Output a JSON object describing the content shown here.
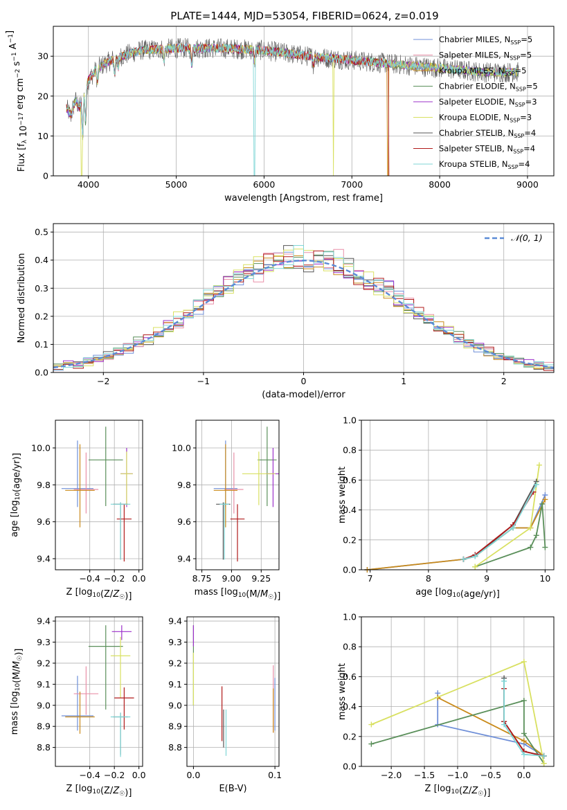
{
  "figure": {
    "title": "PLATE=1444, MJD=53054, FIBERID=0624, z=0.019"
  },
  "models": [
    {
      "name": "Chabrier MILES",
      "nssp": "5",
      "color": "#6f8fd8"
    },
    {
      "name": "Salpeter MILES",
      "nssp": "5",
      "color": "#e98fa8"
    },
    {
      "name": "Kroupa MILES",
      "nssp": "5",
      "color": "#c98a1a"
    },
    {
      "name": "Chabrier ELODIE",
      "nssp": "5",
      "color": "#5a8f5a"
    },
    {
      "name": "Salpeter ELODIE",
      "nssp": "3",
      "color": "#9b2fc9"
    },
    {
      "name": "Kroupa ELODIE",
      "nssp": "3",
      "color": "#d8e060"
    },
    {
      "name": "Chabrier STELIB",
      "nssp": "4",
      "color": "#555555"
    },
    {
      "name": "Salpeter STELIB",
      "nssp": "4",
      "color": "#b01a1a"
    },
    {
      "name": "Kroupa STELIB",
      "nssp": "4",
      "color": "#7fd6d6"
    }
  ],
  "chart_data": [
    {
      "id": "spectrum",
      "type": "line",
      "xlabel": "wavelength [Angstrom, rest frame]",
      "ylabel": "Flux [f_λ 10^-17 erg cm^-2 s^-1 A^-1]",
      "xlim": [
        3600,
        9300
      ],
      "ylim": [
        0,
        37.5
      ],
      "xticks": [
        4000,
        5000,
        6000,
        7000,
        8000,
        9000
      ],
      "yticks": [
        0,
        10,
        20,
        30
      ],
      "continuum": [
        [
          3750,
          17
        ],
        [
          3800,
          15
        ],
        [
          3850,
          19
        ],
        [
          3900,
          17
        ],
        [
          3950,
          21
        ],
        [
          4000,
          24
        ],
        [
          4100,
          27
        ],
        [
          4300,
          29.5
        ],
        [
          4600,
          31.5
        ],
        [
          5000,
          32
        ],
        [
          5500,
          32
        ],
        [
          6000,
          31.5
        ],
        [
          6500,
          30
        ],
        [
          7000,
          29
        ],
        [
          7500,
          28
        ],
        [
          8000,
          27
        ],
        [
          8500,
          26
        ],
        [
          8900,
          26
        ]
      ],
      "dips": [
        [
          5890,
          0
        ],
        [
          6790,
          0
        ],
        [
          7420,
          0
        ],
        [
          3920,
          0
        ]
      ],
      "legend": "top-right"
    },
    {
      "id": "residuals",
      "type": "histogram",
      "xlabel": "(data-model)/error",
      "ylabel": "Normed distribution",
      "xlim": [
        -2.5,
        2.5
      ],
      "ylim": [
        0,
        0.53
      ],
      "xticks": [
        -2,
        -1,
        0,
        1,
        2
      ],
      "yticks": [
        0.0,
        0.1,
        0.2,
        0.3,
        0.4,
        0.5
      ],
      "bin_width": 0.1,
      "reference": {
        "name": "𝒩(0, 1)",
        "mean": 0,
        "sigma": 1,
        "color": "#5b8bd6"
      },
      "legend": "top-right"
    },
    {
      "id": "age-vs-Z",
      "type": "errorbar",
      "xlabel": "Z [log10(Z/Z☉)]",
      "ylabel": "age [log10(age/yr)]",
      "xlim": [
        -0.68,
        0.03
      ],
      "ylim": [
        9.34,
        10.15
      ],
      "xticks": [
        -0.4,
        -0.2,
        0.0
      ],
      "yticks": [
        9.4,
        9.6,
        9.8,
        10.0
      ],
      "points": [
        {
          "x": -0.5,
          "xerr": 0.13,
          "y": 9.78,
          "yerr": 0.1,
          "yerr_up": 0.26,
          "m": 0
        },
        {
          "x": -0.43,
          "xerr": 0.1,
          "y": 9.775,
          "yerr": 0.13,
          "yerr_up": 0.2,
          "m": 1
        },
        {
          "x": -0.48,
          "xerr": 0.12,
          "y": 9.77,
          "yerr": 0.2,
          "yerr_up": 0.25,
          "m": 2
        },
        {
          "x": -0.27,
          "xerr": 0.14,
          "y": 9.935,
          "yerr": 0.25,
          "yerr_up": 0.18,
          "m": 3
        },
        {
          "x": -0.1,
          "xerr": 0.05,
          "y": 9.86,
          "yerr": 0.18,
          "yerr_up": 0.14,
          "m": 4
        },
        {
          "x": -0.1,
          "xerr": 0.05,
          "y": 9.86,
          "yerr": 0.17,
          "yerr_up": 0.12,
          "m": 5
        },
        {
          "x": -0.15,
          "xerr": 0.06,
          "y": 9.695,
          "yerr": 0.3,
          "yerr_up": 0.01,
          "m": 6
        },
        {
          "x": -0.12,
          "xerr": 0.06,
          "y": 9.615,
          "yerr": 0.23,
          "yerr_up": 0.08,
          "m": 7
        },
        {
          "x": -0.15,
          "xerr": 0.08,
          "y": 9.695,
          "yerr": 0.3,
          "yerr_up": 0.01,
          "m": 8
        }
      ]
    },
    {
      "id": "age-vs-mass",
      "type": "errorbar",
      "xlabel": "mass [log10(M/M☉)]",
      "ylabel": "",
      "xlim": [
        8.7,
        9.4
      ],
      "ylim": [
        9.34,
        10.15
      ],
      "xticks": [
        8.75,
        9.0,
        9.25
      ],
      "yticks": [
        9.4,
        9.6,
        9.8,
        10.0
      ],
      "points": [
        {
          "x": 8.95,
          "xerr": 0.1,
          "y": 9.78,
          "yerr": 0.1,
          "yerr_up": 0.26,
          "m": 0
        },
        {
          "x": 9.02,
          "xerr": 0.08,
          "y": 9.775,
          "yerr": 0.13,
          "yerr_up": 0.2,
          "m": 1
        },
        {
          "x": 8.95,
          "xerr": 0.1,
          "y": 9.77,
          "yerr": 0.2,
          "yerr_up": 0.25,
          "m": 2
        },
        {
          "x": 9.3,
          "xerr": 0.08,
          "y": 9.935,
          "yerr": 0.25,
          "yerr_up": 0.18,
          "m": 3
        },
        {
          "x": 9.35,
          "xerr": 0.06,
          "y": 9.86,
          "yerr": 0.18,
          "yerr_up": 0.14,
          "m": 4
        },
        {
          "x": 9.23,
          "xerr": 0.14,
          "y": 9.86,
          "yerr": 0.17,
          "yerr_up": 0.12,
          "m": 5
        },
        {
          "x": 8.93,
          "xerr": 0.06,
          "y": 9.695,
          "yerr": 0.3,
          "yerr_up": 0.01,
          "m": 6
        },
        {
          "x": 9.05,
          "xerr": 0.06,
          "y": 9.615,
          "yerr": 0.23,
          "yerr_up": 0.08,
          "m": 7
        },
        {
          "x": 8.94,
          "xerr": 0.04,
          "y": 9.695,
          "yerr": 0.3,
          "yerr_up": 0.01,
          "m": 8
        }
      ]
    },
    {
      "id": "mass-vs-Z",
      "type": "errorbar",
      "xlabel": "Z [log10(Z/Z☉)]",
      "ylabel": "mass [log10(M/M☉)]",
      "xlim": [
        -0.68,
        0.03
      ],
      "ylim": [
        8.71,
        9.42
      ],
      "xticks": [
        -0.4,
        -0.2,
        0.0
      ],
      "yticks": [
        8.8,
        8.9,
        9.0,
        9.1,
        9.2,
        9.3,
        9.4
      ],
      "points": [
        {
          "x": -0.5,
          "xerr": 0.13,
          "y": 8.95,
          "yerr": 0.07,
          "yerr_up": 0.19,
          "m": 0
        },
        {
          "x": -0.43,
          "xerr": 0.1,
          "y": 9.055,
          "yerr": 0.1,
          "yerr_up": 0.13,
          "m": 1
        },
        {
          "x": -0.48,
          "xerr": 0.12,
          "y": 8.945,
          "yerr": 0.08,
          "yerr_up": 0.12,
          "m": 2
        },
        {
          "x": -0.27,
          "xerr": 0.14,
          "y": 9.28,
          "yerr": 0.3,
          "yerr_up": 0.1,
          "m": 3
        },
        {
          "x": -0.14,
          "xerr": 0.08,
          "y": 9.35,
          "yerr": 0.04,
          "yerr_up": 0.03,
          "m": 4
        },
        {
          "x": -0.15,
          "xerr": 0.08,
          "y": 9.235,
          "yerr": 0.2,
          "yerr_up": 0.09,
          "m": 5
        },
        {
          "x": -0.15,
          "xerr": 0.06,
          "y": 8.945,
          "yerr": 0.18,
          "yerr_up": 0.02,
          "m": 6
        },
        {
          "x": -0.12,
          "xerr": 0.08,
          "y": 9.035,
          "yerr": 0.15,
          "yerr_up": 0.05,
          "m": 7
        },
        {
          "x": -0.15,
          "xerr": 0.08,
          "y": 8.945,
          "yerr": 0.19,
          "yerr_up": 0.02,
          "m": 8
        }
      ]
    },
    {
      "id": "mass-vs-ebv",
      "type": "errorbar",
      "xlabel": "E(B-V)",
      "ylabel": "",
      "xlim": [
        -0.008,
        0.105
      ],
      "ylim": [
        8.71,
        9.42
      ],
      "xticks": [
        0.0,
        0.1
      ],
      "yticks": [
        8.8,
        8.9,
        9.0,
        9.1,
        9.2,
        9.3,
        9.4
      ],
      "points": [
        {
          "x": 0.1,
          "xerr": 0.0,
          "y": 9.0,
          "yerr": 0.12,
          "yerr_up": 0.13,
          "m": 0
        },
        {
          "x": 0.098,
          "xerr": 0.0,
          "y": 9.05,
          "yerr": 0.18,
          "yerr_up": 0.14,
          "m": 1
        },
        {
          "x": 0.098,
          "xerr": 0.0,
          "y": 9.0,
          "yerr": 0.13,
          "yerr_up": 0.08,
          "m": 2
        },
        {
          "x": 0.0,
          "xerr": 0.0,
          "y": 9.28,
          "yerr": 0.28,
          "yerr_up": 0.1,
          "m": 3
        },
        {
          "x": 0.0,
          "xerr": 0.0,
          "y": 9.34,
          "yerr": 0.06,
          "yerr_up": 0.04,
          "m": 4
        },
        {
          "x": 0.0,
          "xerr": 0.0,
          "y": 9.15,
          "yerr": 0.15,
          "yerr_up": 0.1,
          "m": 5
        },
        {
          "x": 0.037,
          "xerr": 0.0,
          "y": 8.95,
          "yerr": 0.15,
          "yerr_up": 0.03,
          "m": 6
        },
        {
          "x": 0.035,
          "xerr": 0.0,
          "y": 8.95,
          "yerr": 0.12,
          "yerr_up": 0.14,
          "m": 7
        },
        {
          "x": 0.04,
          "xerr": 0.0,
          "y": 8.88,
          "yerr": 0.12,
          "yerr_up": 0.1,
          "m": 8
        }
      ]
    },
    {
      "id": "weight-vs-age",
      "type": "line",
      "xlabel": "age [log10(age/yr)]",
      "ylabel": "mass weight",
      "xlim": [
        6.85,
        10.15
      ],
      "ylim": [
        0,
        1.0
      ],
      "xticks": [
        7,
        8,
        9,
        10
      ],
      "yticks": [
        0.0,
        0.2,
        0.4,
        0.6,
        0.8,
        1.0
      ],
      "series": [
        {
          "m": 0,
          "x": [
            6.95,
            8.6,
            8.8,
            9.45,
            9.75,
            10.0
          ],
          "y": [
            0.0,
            0.07,
            0.09,
            0.28,
            0.28,
            0.5
          ]
        },
        {
          "m": 2,
          "x": [
            6.95,
            8.6,
            8.8,
            9.45,
            9.75,
            10.0
          ],
          "y": [
            0.0,
            0.07,
            0.09,
            0.28,
            0.28,
            0.47
          ]
        },
        {
          "m": 3,
          "x": [
            8.8,
            9.75,
            9.85,
            9.95,
            10.0
          ],
          "y": [
            0.02,
            0.15,
            0.23,
            0.44,
            0.15
          ]
        },
        {
          "m": 5,
          "x": [
            8.8,
            9.75,
            9.9
          ],
          "y": [
            0.02,
            0.28,
            0.7
          ]
        },
        {
          "m": 6,
          "x": [
            8.6,
            8.8,
            9.45,
            9.85
          ],
          "y": [
            0.07,
            0.09,
            0.3,
            0.59
          ]
        },
        {
          "m": 7,
          "x": [
            8.6,
            8.8,
            9.45,
            9.8
          ],
          "y": [
            0.07,
            0.1,
            0.3,
            0.52
          ]
        },
        {
          "m": 8,
          "x": [
            8.6,
            8.8,
            9.45,
            9.85
          ],
          "y": [
            0.07,
            0.09,
            0.28,
            0.57
          ]
        }
      ]
    },
    {
      "id": "weight-vs-Z",
      "type": "line",
      "xlabel": "Z [log10(Z/Z☉)]",
      "ylabel": "mass weight",
      "xlim": [
        -2.45,
        0.45
      ],
      "ylim": [
        0,
        1.0
      ],
      "xticks": [
        -2.0,
        -1.5,
        -1.0,
        -0.5,
        0.0
      ],
      "yticks": [
        0.0,
        0.2,
        0.4,
        0.6,
        0.8,
        1.0
      ],
      "series": [
        {
          "m": 0,
          "x": [
            -1.3,
            -1.3,
            0.0,
            0.3
          ],
          "y": [
            0.49,
            0.28,
            0.15,
            0.07
          ]
        },
        {
          "m": 2,
          "x": [
            -1.3,
            -1.3,
            0.0,
            0.3
          ],
          "y": [
            0.46,
            0.46,
            0.17,
            0.07
          ]
        },
        {
          "m": 3,
          "x": [
            -2.3,
            0.0,
            0.0,
            0.3
          ],
          "y": [
            0.15,
            0.44,
            0.22,
            0.02
          ]
        },
        {
          "m": 5,
          "x": [
            -2.3,
            0.0,
            0.3
          ],
          "y": [
            0.28,
            0.7,
            0.02
          ]
        },
        {
          "m": 6,
          "x": [
            -0.3,
            -0.3,
            0.0,
            0.3
          ],
          "y": [
            0.59,
            0.3,
            0.1,
            0.07
          ]
        },
        {
          "m": 7,
          "x": [
            -0.3,
            -0.3,
            0.0,
            0.3
          ],
          "y": [
            0.52,
            0.3,
            0.1,
            0.07
          ]
        },
        {
          "m": 8,
          "x": [
            -0.3,
            -0.3,
            0.0,
            0.3
          ],
          "y": [
            0.57,
            0.28,
            0.08,
            0.07
          ]
        }
      ]
    }
  ]
}
